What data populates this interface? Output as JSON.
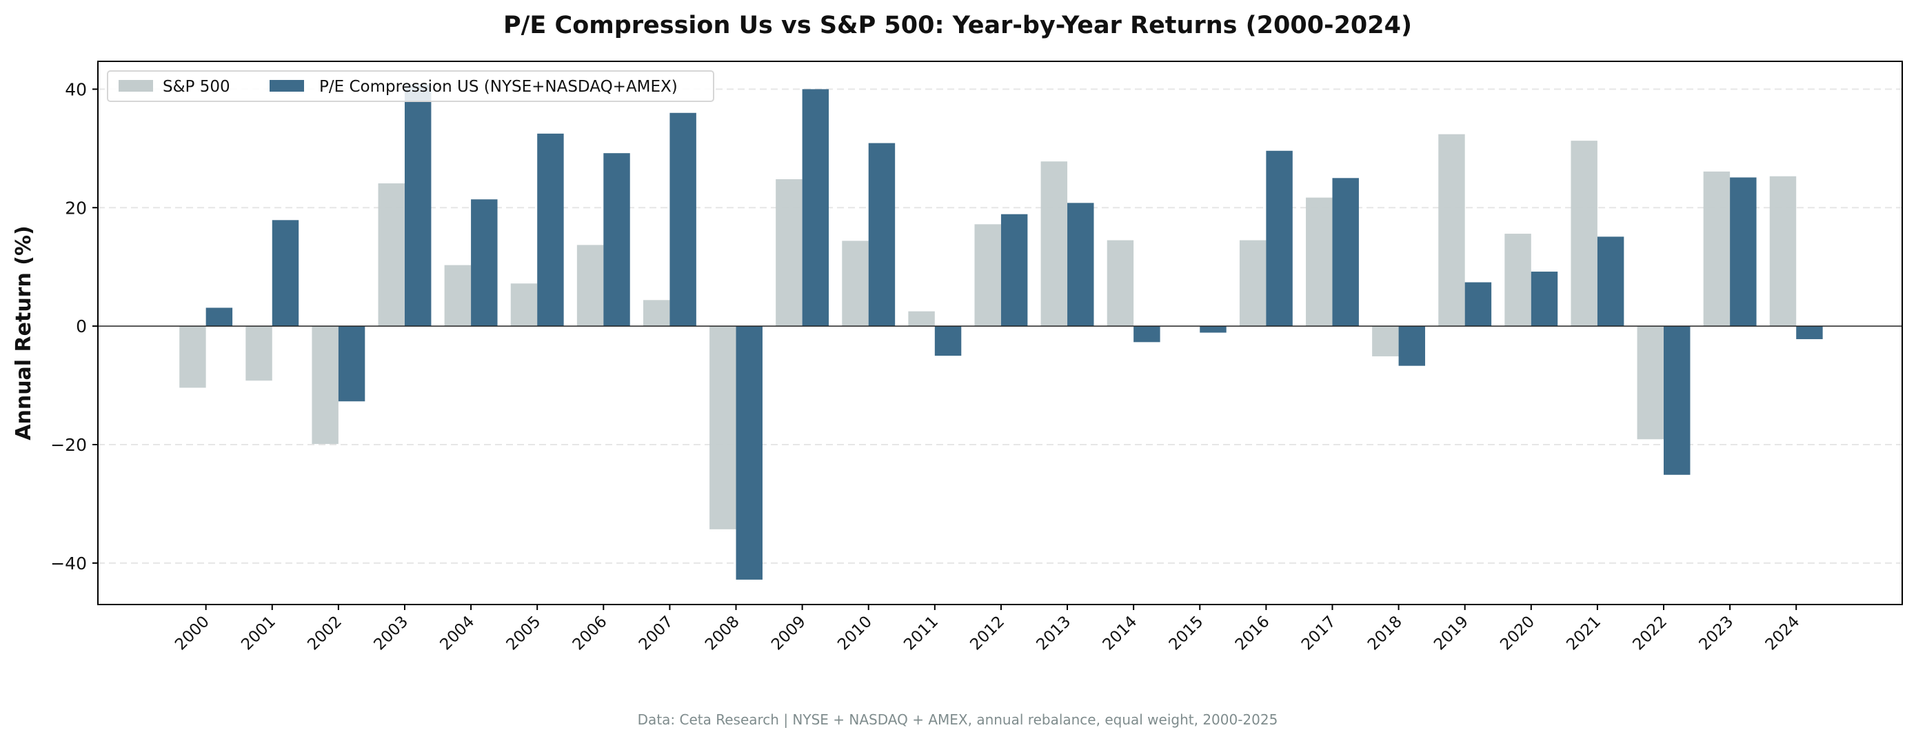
{
  "chart_data": {
    "type": "bar",
    "title": "P/E Compression Us vs S&P 500: Year-by-Year Returns (2000-2024)",
    "xlabel": "",
    "ylabel": "Annual Return (%)",
    "categories": [
      "2000",
      "2001",
      "2002",
      "2003",
      "2004",
      "2005",
      "2006",
      "2007",
      "2008",
      "2009",
      "2010",
      "2011",
      "2012",
      "2013",
      "2014",
      "2015",
      "2016",
      "2017",
      "2018",
      "2019",
      "2020",
      "2021",
      "2022",
      "2023",
      "2024"
    ],
    "series": [
      {
        "name": "S&P 500",
        "color": "#c3cccd",
        "values": [
          -10.4,
          -9.2,
          -19.9,
          24.1,
          10.3,
          7.2,
          13.7,
          4.4,
          -34.3,
          24.8,
          14.4,
          2.5,
          17.2,
          27.8,
          14.5,
          0.0,
          14.5,
          21.7,
          -5.1,
          32.4,
          15.6,
          31.3,
          -19.1,
          26.1,
          25.3
        ]
      },
      {
        "name": "P/E Compression US (NYSE+NASDAQ+AMEX)",
        "color": "#3d6b8a",
        "values": [
          3.1,
          17.9,
          -12.7,
          40.8,
          21.4,
          32.5,
          29.2,
          36.0,
          -42.8,
          40.0,
          30.9,
          -5.0,
          18.9,
          20.8,
          -2.7,
          -1.1,
          29.6,
          25.0,
          -6.7,
          7.4,
          9.2,
          15.1,
          -25.1,
          25.1,
          -2.2
        ]
      }
    ],
    "yticks": [
      -40,
      -20,
      0,
      20,
      40
    ],
    "ylim": [
      -47,
      44.7
    ],
    "grid": "horizontal dashed",
    "legend": "top-left",
    "footnote": "Data: Ceta Research | NYSE + NASDAQ + AMEX, annual rebalance, equal weight, 2000-2025"
  }
}
